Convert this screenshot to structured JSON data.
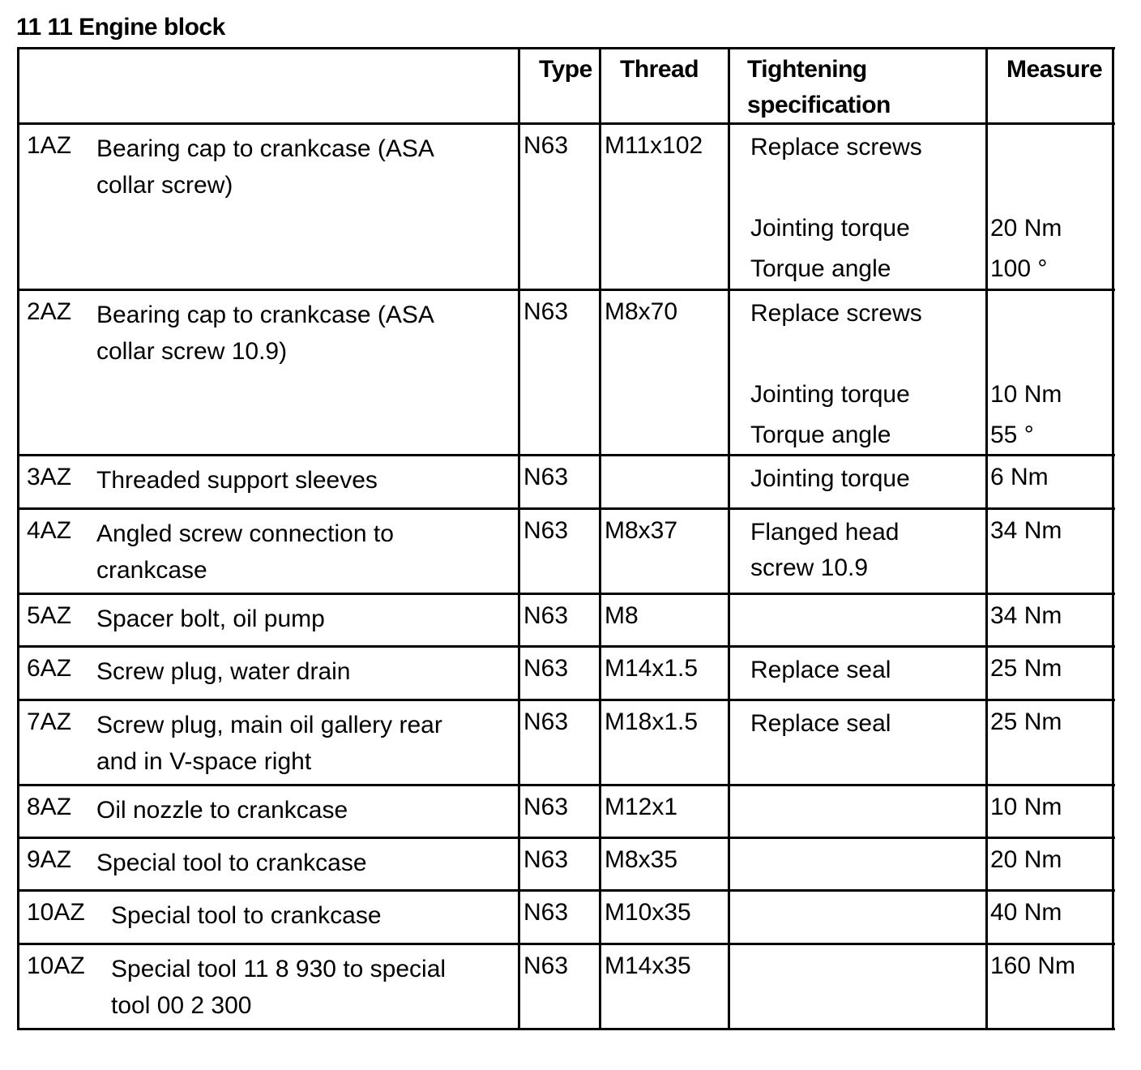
{
  "title": "11 11 Engine block",
  "header": {
    "type": "Type",
    "thread": "Thread",
    "spec": [
      "Tightening",
      "specification"
    ],
    "measure": "Measure"
  },
  "rows": [
    {
      "id": "1AZ",
      "desc": [
        "Bearing cap to crankcase (ASA",
        "collar screw)"
      ],
      "type": "N63",
      "thread": "M11x102",
      "spec": [
        "Replace screws",
        "",
        "Jointing torque",
        "Torque angle"
      ],
      "measure": [
        "",
        "",
        "20 Nm",
        "100 °"
      ]
    },
    {
      "id": "2AZ",
      "desc": [
        "Bearing cap to crankcase (ASA",
        "collar screw 10.9)"
      ],
      "type": "N63",
      "thread": "M8x70",
      "spec": [
        "Replace screws",
        "",
        "Jointing torque",
        "Torque angle"
      ],
      "measure": [
        "",
        "",
        "10 Nm",
        "55 °"
      ]
    },
    {
      "id": "3AZ",
      "desc": [
        "Threaded support sleeves"
      ],
      "type": "N63",
      "thread": "",
      "spec": [
        "Jointing torque"
      ],
      "measure": [
        "6 Nm"
      ]
    },
    {
      "id": "4AZ",
      "desc": [
        "Angled screw connection to",
        "crankcase"
      ],
      "type": "N63",
      "thread": "M8x37",
      "spec": [
        "Flanged head",
        "screw 10.9"
      ],
      "measure": [
        "34 Nm"
      ]
    },
    {
      "id": "5AZ",
      "desc": [
        "Spacer bolt, oil pump"
      ],
      "type": "N63",
      "thread": "M8",
      "spec": [],
      "measure": [
        "34 Nm"
      ]
    },
    {
      "id": "6AZ",
      "desc": [
        "Screw plug, water drain"
      ],
      "type": "N63",
      "thread": "M14x1.5",
      "spec": [
        "Replace seal"
      ],
      "measure": [
        "25 Nm"
      ]
    },
    {
      "id": "7AZ",
      "desc": [
        "Screw plug, main oil gallery rear",
        "and in V-space right"
      ],
      "type": "N63",
      "thread": "M18x1.5",
      "spec": [
        "Replace seal"
      ],
      "measure": [
        "25 Nm"
      ]
    },
    {
      "id": "8AZ",
      "desc": [
        "Oil nozzle to crankcase"
      ],
      "type": "N63",
      "thread": "M12x1",
      "spec": [],
      "measure": [
        "10 Nm"
      ]
    },
    {
      "id": "9AZ",
      "desc": [
        "Special tool to crankcase"
      ],
      "type": "N63",
      "thread": "M8x35",
      "spec": [],
      "measure": [
        "20 Nm"
      ]
    },
    {
      "id": "10AZ",
      "desc": [
        "Special tool to crankcase"
      ],
      "type": "N63",
      "thread": "M10x35",
      "spec": [],
      "measure": [
        "40 Nm"
      ]
    },
    {
      "id": "10AZ",
      "desc": [
        "Special tool 11 8 930 to special",
        "tool 00 2 300"
      ],
      "type": "N63",
      "thread": "M14x35",
      "spec": [],
      "measure": [
        "160 Nm"
      ]
    }
  ]
}
